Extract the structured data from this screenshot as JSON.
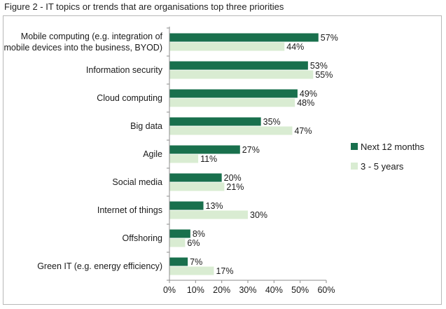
{
  "figure": {
    "title": "Figure 2 - IT topics or trends that are organisations top three priorities"
  },
  "colors": {
    "series_primary": "#19704d",
    "series_secondary": "#d9ecd2",
    "axis": "#8c8c8c",
    "frame": "#b8b8b8"
  },
  "chart_data": {
    "type": "bar",
    "orientation": "horizontal",
    "categories": [
      [
        "Mobile computing (e.g. integration of",
        "mobile devices into the business, BYOD)"
      ],
      [
        "Information security"
      ],
      [
        "Cloud computing"
      ],
      [
        "Big data"
      ],
      [
        "Agile"
      ],
      [
        "Social media"
      ],
      [
        "Internet of things"
      ],
      [
        "Offshoring"
      ],
      [
        "Green IT (e.g. energy efficiency)"
      ]
    ],
    "series": [
      {
        "name": "Next 12 months",
        "values": [
          57,
          53,
          49,
          35,
          27,
          20,
          13,
          8,
          7
        ]
      },
      {
        "name": "3 - 5 years",
        "values": [
          44,
          55,
          48,
          47,
          11,
          21,
          30,
          6,
          17
        ]
      }
    ],
    "value_suffix": "%",
    "xlim": [
      0,
      60
    ],
    "xticks": [
      "0%",
      "10%",
      "20%",
      "30%",
      "40%",
      "50%",
      "60%"
    ],
    "grid": false,
    "legend_position": "right"
  }
}
